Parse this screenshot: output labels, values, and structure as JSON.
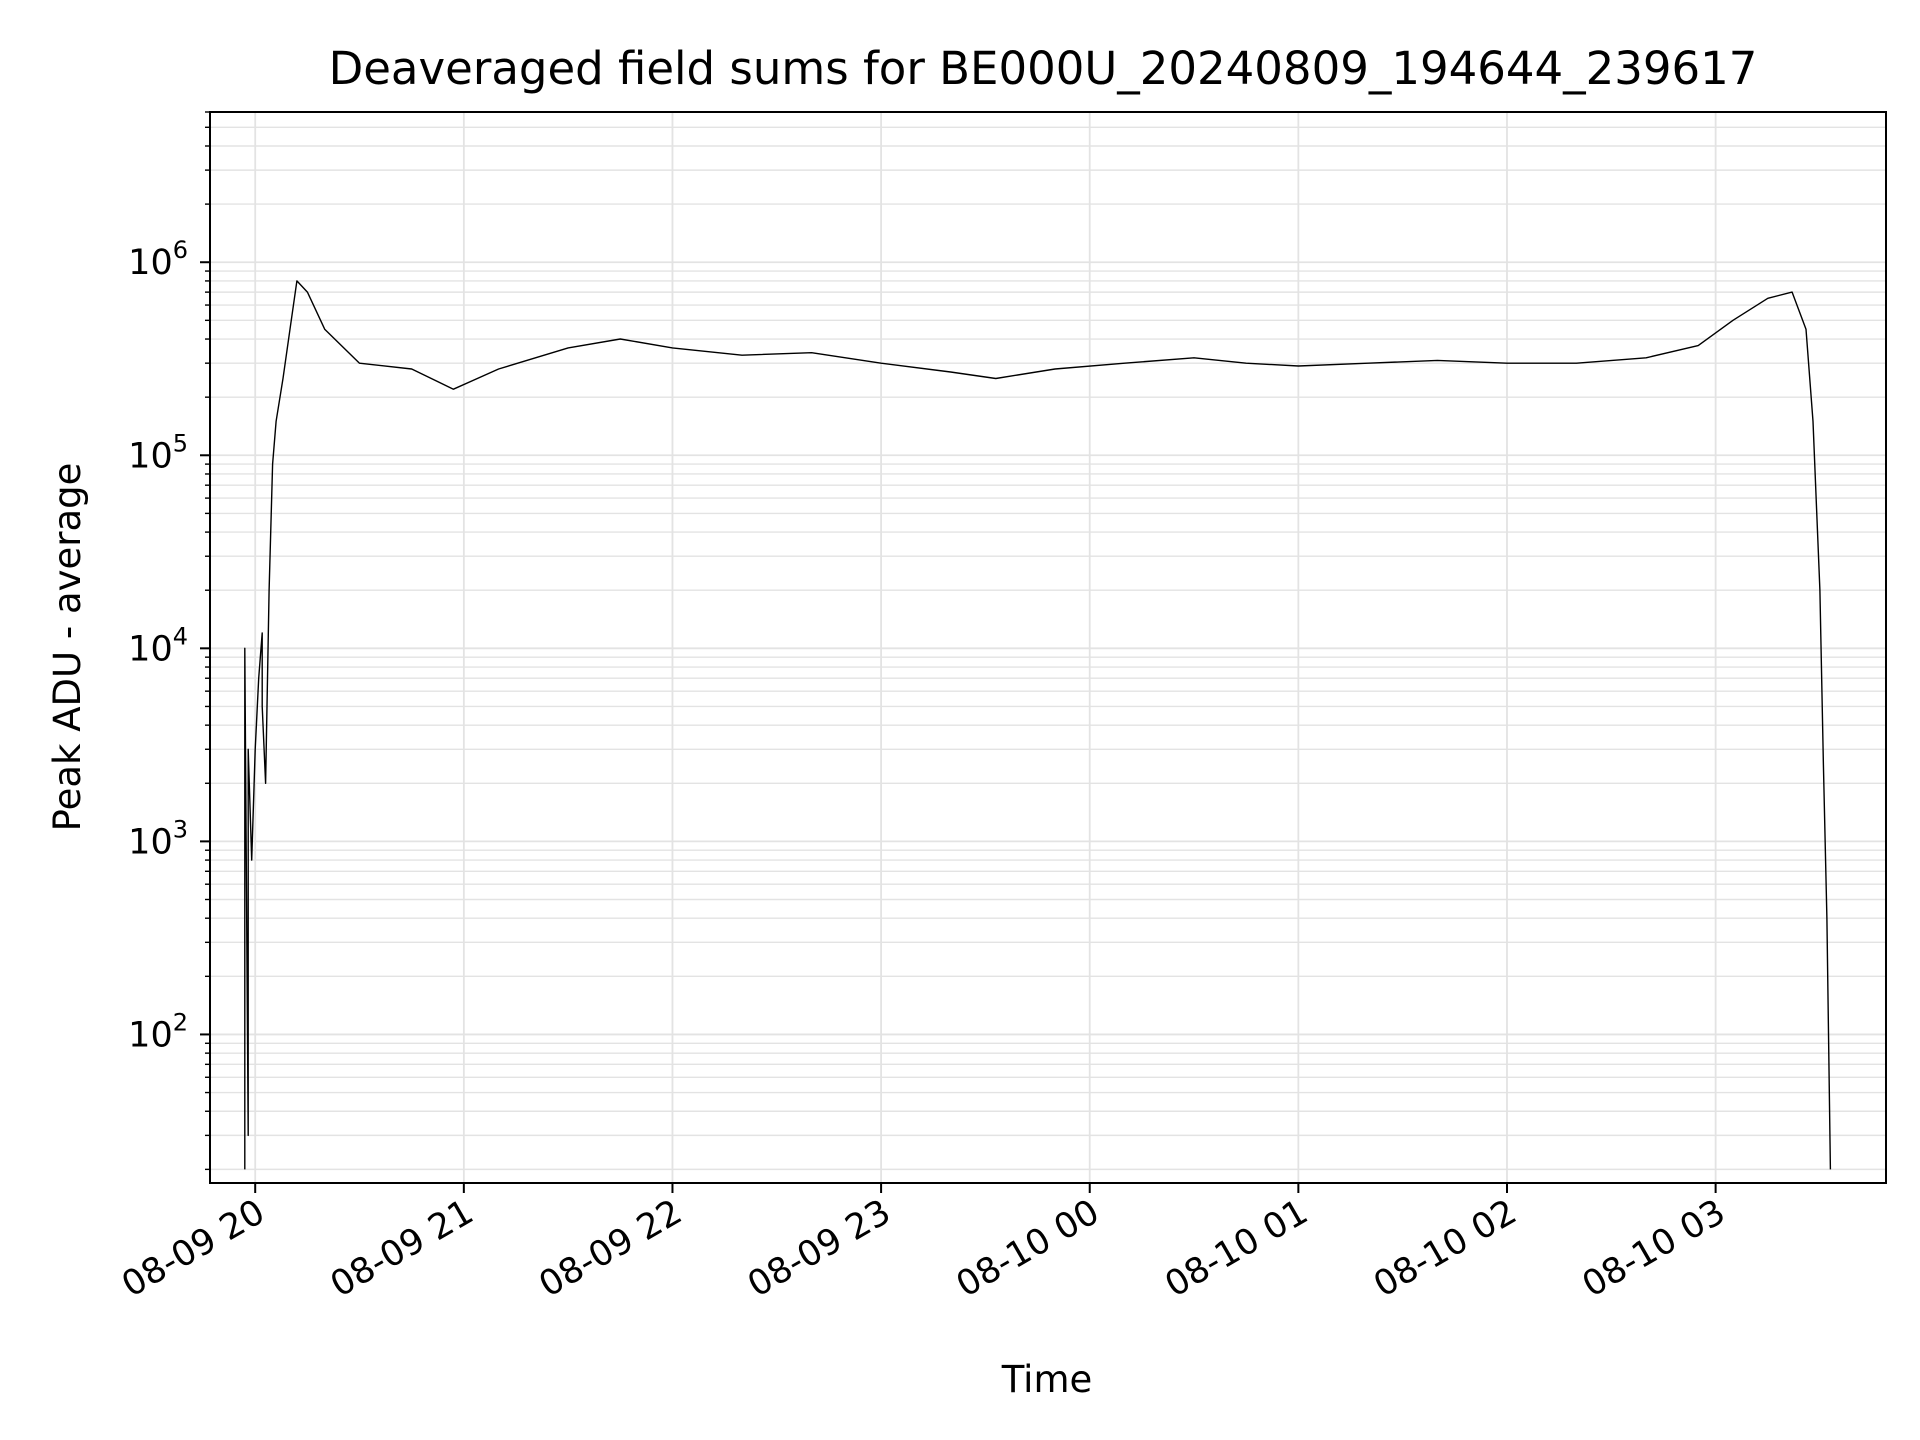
{
  "chart_data": {
    "type": "line",
    "title": "Deaveraged field sums for BE000U_20240809_194644_239617",
    "xlabel": "Time",
    "ylabel": "Peak ADU - average",
    "yscale": "log",
    "ylim": [
      17,
      6000000
    ],
    "xlim": [
      "2024-08-09 19:47",
      "2024-08-10 03:49"
    ],
    "grid": "major-and-minor",
    "line_color": "#000000",
    "x_ticks": [
      {
        "t": "2024-08-09 20:00",
        "label": "08-09 20"
      },
      {
        "t": "2024-08-09 21:00",
        "label": "08-09 21"
      },
      {
        "t": "2024-08-09 22:00",
        "label": "08-09 22"
      },
      {
        "t": "2024-08-09 23:00",
        "label": "08-09 23"
      },
      {
        "t": "2024-08-10 00:00",
        "label": "08-10 00"
      },
      {
        "t": "2024-08-10 01:00",
        "label": "08-10 01"
      },
      {
        "t": "2024-08-10 02:00",
        "label": "08-10 02"
      },
      {
        "t": "2024-08-10 03:00",
        "label": "08-10 03"
      }
    ],
    "y_ticks": [
      {
        "value": 100,
        "base": "10",
        "exp": "2"
      },
      {
        "value": 1000,
        "base": "10",
        "exp": "3"
      },
      {
        "value": 10000,
        "base": "10",
        "exp": "4"
      },
      {
        "value": 100000,
        "base": "10",
        "exp": "5"
      },
      {
        "value": 1000000,
        "base": "10",
        "exp": "6"
      }
    ],
    "series": [
      {
        "x": [
          "2024-08-09 19:57",
          "2024-08-09 19:57",
          "2024-08-09 19:58",
          "2024-08-09 19:58",
          "2024-08-09 19:59",
          "2024-08-09 20:00",
          "2024-08-09 20:01",
          "2024-08-09 20:02",
          "2024-08-09 20:02",
          "2024-08-09 20:03",
          "2024-08-09 20:04",
          "2024-08-09 20:05",
          "2024-08-09 20:06",
          "2024-08-09 20:08",
          "2024-08-09 20:10",
          "2024-08-09 20:12",
          "2024-08-09 20:15",
          "2024-08-09 20:20",
          "2024-08-09 20:30",
          "2024-08-09 20:45",
          "2024-08-09 20:57",
          "2024-08-09 21:10",
          "2024-08-09 21:30",
          "2024-08-09 21:45",
          "2024-08-09 22:00",
          "2024-08-09 22:20",
          "2024-08-09 22:40",
          "2024-08-09 23:00",
          "2024-08-09 23:20",
          "2024-08-09 23:33",
          "2024-08-09 23:50",
          "2024-08-10 00:10",
          "2024-08-10 00:30",
          "2024-08-10 00:45",
          "2024-08-10 01:00",
          "2024-08-10 01:20",
          "2024-08-10 01:40",
          "2024-08-10 02:00",
          "2024-08-10 02:20",
          "2024-08-10 02:40",
          "2024-08-10 02:55",
          "2024-08-10 03:05",
          "2024-08-10 03:15",
          "2024-08-10 03:22",
          "2024-08-10 03:26",
          "2024-08-10 03:28",
          "2024-08-10 03:30",
          "2024-08-10 03:31",
          "2024-08-10 03:32",
          "2024-08-10 03:33"
        ],
        "y": [
          20,
          10000,
          30,
          3000,
          800,
          3000,
          7000,
          12000,
          5000,
          2000,
          20000,
          90000,
          150000,
          250000,
          450000,
          800000,
          700000,
          450000,
          300000,
          280000,
          220000,
          280000,
          360000,
          400000,
          360000,
          330000,
          340000,
          300000,
          270000,
          250000,
          280000,
          300000,
          320000,
          300000,
          290000,
          300000,
          310000,
          300000,
          300000,
          320000,
          370000,
          500000,
          650000,
          700000,
          450000,
          150000,
          20000,
          2500,
          400,
          20
        ]
      }
    ]
  }
}
